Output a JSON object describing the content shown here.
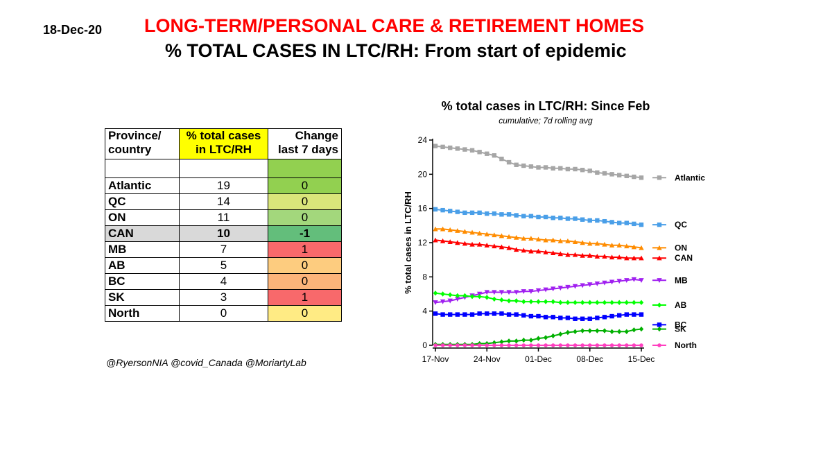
{
  "header": {
    "date": "18-Dec-20",
    "title_line1": "LONG-TERM/PERSONAL  CARE & RETIREMENT  HOMES",
    "title_line2": "% TOTAL CASES IN LTC/RH: From start of epidemic"
  },
  "table": {
    "headers": [
      "Province/\ncountry",
      "% total cases\nin LTC/RH",
      "Change\nlast 7 days"
    ],
    "rows": [
      {
        "name": "Atlantic",
        "pct": "19",
        "change": "0",
        "color": "#92d050"
      },
      {
        "name": "QC",
        "pct": "14",
        "change": "0",
        "color": "#d9e57a"
      },
      {
        "name": "ON",
        "pct": "11",
        "change": "0",
        "color": "#a3d77c"
      },
      {
        "name": "CAN",
        "pct": "10",
        "change": "-1",
        "color": "#63be7b"
      },
      {
        "name": "MB",
        "pct": "7",
        "change": "1",
        "color": "#f8696b"
      },
      {
        "name": "AB",
        "pct": "5",
        "change": "0",
        "color": "#fdcc7f"
      },
      {
        "name": "BC",
        "pct": "4",
        "change": "0",
        "color": "#fcb47a"
      },
      {
        "name": "SK",
        "pct": "3",
        "change": "1",
        "color": "#f8696b"
      },
      {
        "name": "North",
        "pct": "0",
        "change": "0",
        "color": "#ffeb84"
      }
    ]
  },
  "credit": "@RyersonNIA @covid_Canada @MoriartyLab",
  "chart_data": {
    "type": "line",
    "title": "% total cases in LTC/RH: Since Feb",
    "subtitle": "cumulative; 7d rolling avg",
    "ylabel": "% total cases in LTC/RH",
    "xlabel": "",
    "ylim": [
      0,
      24
    ],
    "yticks": [
      0,
      4,
      8,
      12,
      16,
      20,
      24
    ],
    "x_tick_labels": [
      "17-Nov",
      "24-Nov",
      "01-Dec",
      "08-Dec",
      "15-Dec"
    ],
    "x_tick_dates": [
      "2020-11-17",
      "2020-11-24",
      "2020-12-01",
      "2020-12-08",
      "2020-12-15"
    ],
    "x_start": "2020-11-17",
    "x_end": "2020-12-15",
    "series": [
      {
        "name": "Atlantic",
        "color": "#a6a6a6",
        "marker": "square",
        "values": [
          23.3,
          23.2,
          23.1,
          23.0,
          22.9,
          22.8,
          22.6,
          22.4,
          22.2,
          21.8,
          21.4,
          21.1,
          21.0,
          20.9,
          20.8,
          20.8,
          20.7,
          20.7,
          20.6,
          20.6,
          20.5,
          20.4,
          20.2,
          20.1,
          20.0,
          19.9,
          19.8,
          19.7,
          19.6
        ]
      },
      {
        "name": "QC",
        "color": "#4a9fe8",
        "marker": "square",
        "values": [
          15.9,
          15.8,
          15.7,
          15.6,
          15.5,
          15.5,
          15.5,
          15.4,
          15.4,
          15.3,
          15.3,
          15.2,
          15.1,
          15.1,
          15.0,
          15.0,
          14.9,
          14.9,
          14.8,
          14.8,
          14.7,
          14.6,
          14.6,
          14.5,
          14.4,
          14.3,
          14.3,
          14.2,
          14.1
        ]
      },
      {
        "name": "ON",
        "color": "#ff8c00",
        "marker": "triangle",
        "values": [
          13.6,
          13.6,
          13.5,
          13.4,
          13.3,
          13.2,
          13.1,
          13.0,
          12.9,
          12.8,
          12.7,
          12.6,
          12.5,
          12.5,
          12.4,
          12.3,
          12.3,
          12.2,
          12.2,
          12.1,
          12.0,
          11.9,
          11.9,
          11.8,
          11.7,
          11.7,
          11.6,
          11.5,
          11.4
        ]
      },
      {
        "name": "CAN",
        "color": "#ff0000",
        "marker": "triangle",
        "values": [
          12.3,
          12.2,
          12.1,
          12.0,
          11.9,
          11.8,
          11.8,
          11.7,
          11.6,
          11.5,
          11.4,
          11.2,
          11.1,
          11.0,
          11.0,
          10.9,
          10.8,
          10.7,
          10.6,
          10.6,
          10.5,
          10.5,
          10.4,
          10.4,
          10.3,
          10.3,
          10.2,
          10.2,
          10.2
        ]
      },
      {
        "name": "MB",
        "color": "#a020f0",
        "marker": "triangle-down",
        "values": [
          5.0,
          5.1,
          5.2,
          5.4,
          5.6,
          5.8,
          6.0,
          6.2,
          6.2,
          6.2,
          6.2,
          6.2,
          6.3,
          6.3,
          6.4,
          6.5,
          6.6,
          6.7,
          6.8,
          6.9,
          7.0,
          7.1,
          7.2,
          7.3,
          7.4,
          7.5,
          7.6,
          7.7,
          7.6
        ]
      },
      {
        "name": "AB",
        "color": "#00ff00",
        "marker": "diamond",
        "values": [
          6.1,
          6.0,
          5.9,
          5.8,
          5.8,
          5.7,
          5.7,
          5.6,
          5.4,
          5.3,
          5.2,
          5.2,
          5.1,
          5.1,
          5.1,
          5.1,
          5.1,
          5.0,
          5.0,
          5.0,
          5.0,
          5.0,
          5.0,
          5.0,
          5.0,
          5.0,
          5.0,
          5.0,
          5.0
        ]
      },
      {
        "name": "BC",
        "color": "#0000ff",
        "marker": "square",
        "values": [
          3.7,
          3.6,
          3.6,
          3.6,
          3.6,
          3.6,
          3.7,
          3.7,
          3.7,
          3.7,
          3.6,
          3.6,
          3.5,
          3.4,
          3.4,
          3.3,
          3.3,
          3.2,
          3.2,
          3.1,
          3.1,
          3.1,
          3.2,
          3.3,
          3.4,
          3.5,
          3.6,
          3.6,
          3.6
        ]
      },
      {
        "name": "SK",
        "color": "#00b000",
        "marker": "diamond",
        "values": [
          0.1,
          0.1,
          0.1,
          0.1,
          0.1,
          0.1,
          0.2,
          0.2,
          0.3,
          0.4,
          0.5,
          0.5,
          0.6,
          0.6,
          0.8,
          0.9,
          1.1,
          1.3,
          1.5,
          1.6,
          1.7,
          1.7,
          1.7,
          1.7,
          1.6,
          1.6,
          1.6,
          1.8,
          1.9
        ]
      },
      {
        "name": "North",
        "color": "#ff40c0",
        "marker": "circle",
        "values": [
          0,
          0,
          0,
          0,
          0,
          0,
          0,
          0,
          0,
          0,
          0,
          0,
          0,
          0,
          0,
          0,
          0,
          0,
          0,
          0,
          0,
          0,
          0,
          0,
          0,
          0,
          0,
          0,
          0
        ]
      }
    ],
    "label_offsets": {
      "AB": -0.3,
      "BC": -1.2
    }
  }
}
